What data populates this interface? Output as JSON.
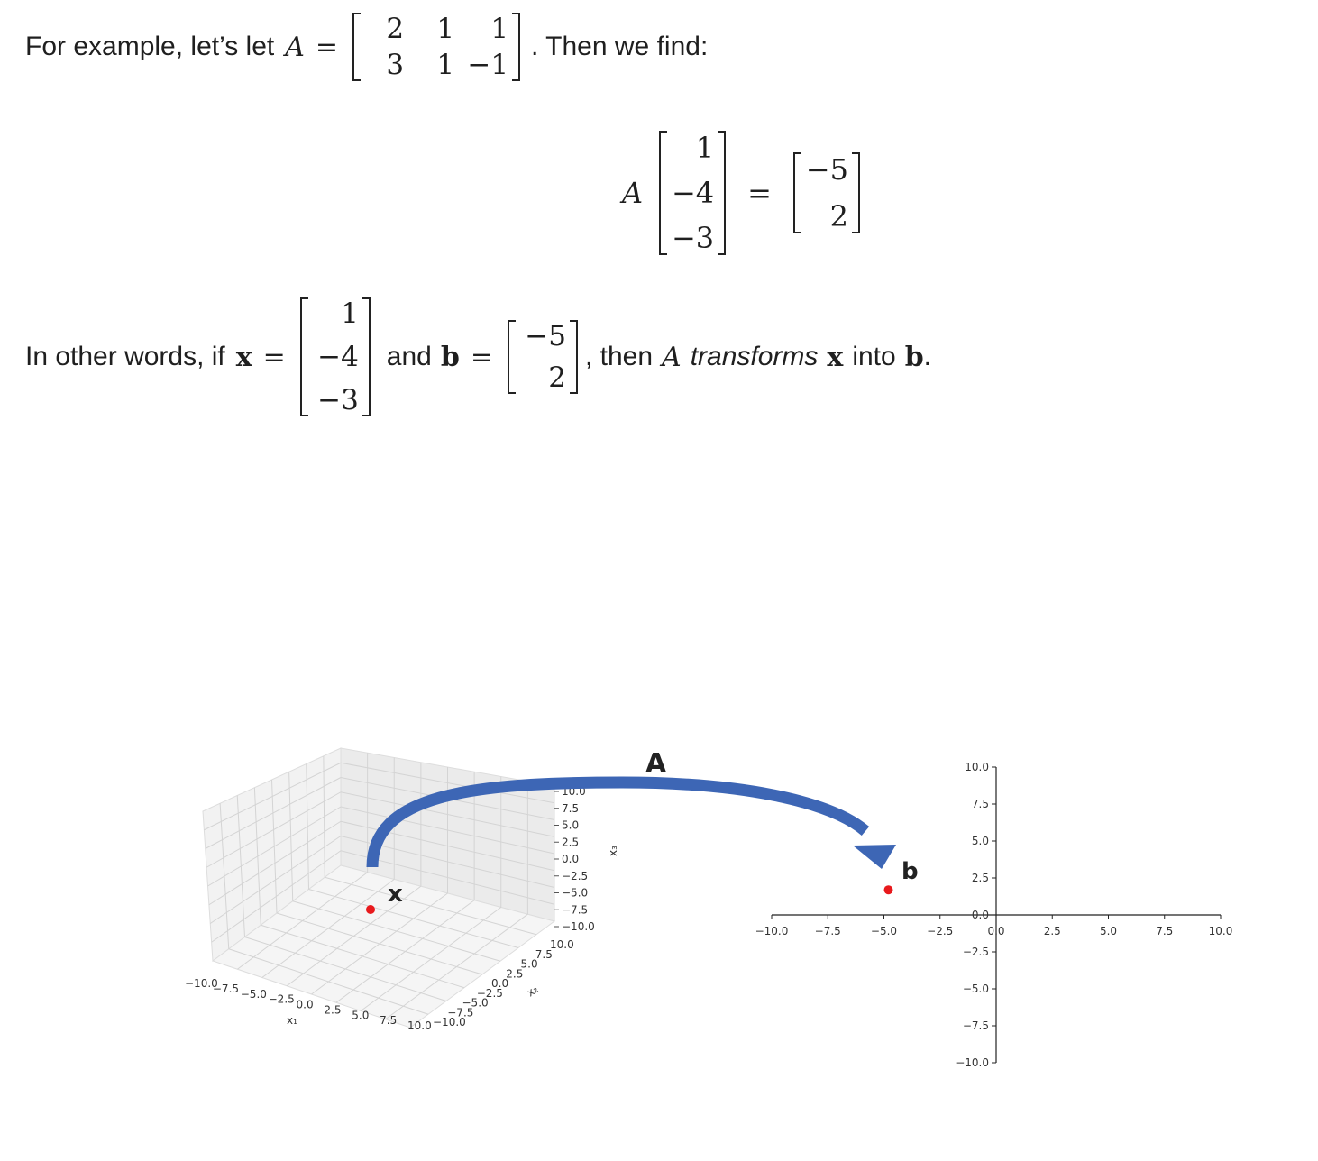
{
  "line1": {
    "prefix": "For example, let’s let",
    "var": "A",
    "eq": "=",
    "matrix": [
      [
        "2",
        "1",
        "1"
      ],
      [
        "3",
        "1",
        "−1"
      ]
    ],
    "suffix": ". Then we find:"
  },
  "display": {
    "var": "A",
    "x": [
      "1",
      "−4",
      "−3"
    ],
    "eq": "=",
    "b": [
      "−5",
      "2"
    ]
  },
  "line2": {
    "prefix": "In other words, if",
    "xvar": "x",
    "eq": "=",
    "x": [
      "1",
      "−4",
      "−3"
    ],
    "and": "and",
    "bvar": "b",
    "b": [
      "−5",
      "2"
    ],
    "then": ", then",
    "A": "A",
    "transforms": "transforms",
    "xvar2": "x",
    "into": "into",
    "bvar2": "b",
    "end": "."
  },
  "figure": {
    "arrow_label": "A",
    "x_label": "x",
    "b_label": "b",
    "point_color": "#e8191c",
    "arrow_color": "#3d66b5",
    "plot3d": {
      "x1_label": "x₁",
      "x2_label": "x₂",
      "x3_label": "x₃",
      "ticks": [
        "−10.0",
        "−7.5",
        "−5.0",
        "−2.5",
        "0.0",
        "2.5",
        "5.0",
        "7.5",
        "10.0"
      ],
      "x3_ticks": [
        "10.0",
        "7.5",
        "5.0",
        "2.5",
        "0.0",
        "−2.5",
        "−5.0",
        "−7.5",
        "−10.0"
      ]
    },
    "plot2d": {
      "x_ticks": [
        "−10.0",
        "−7.5",
        "−5.0",
        "−2.5",
        "0.0",
        "2.5",
        "5.0",
        "7.5",
        "10.0"
      ],
      "y_ticks": [
        "10.0",
        "7.5",
        "5.0",
        "2.5",
        "0.0",
        "−2.5",
        "−5.0",
        "−7.5",
        "−10.0"
      ],
      "point": {
        "x": -5,
        "y": 2
      }
    }
  }
}
